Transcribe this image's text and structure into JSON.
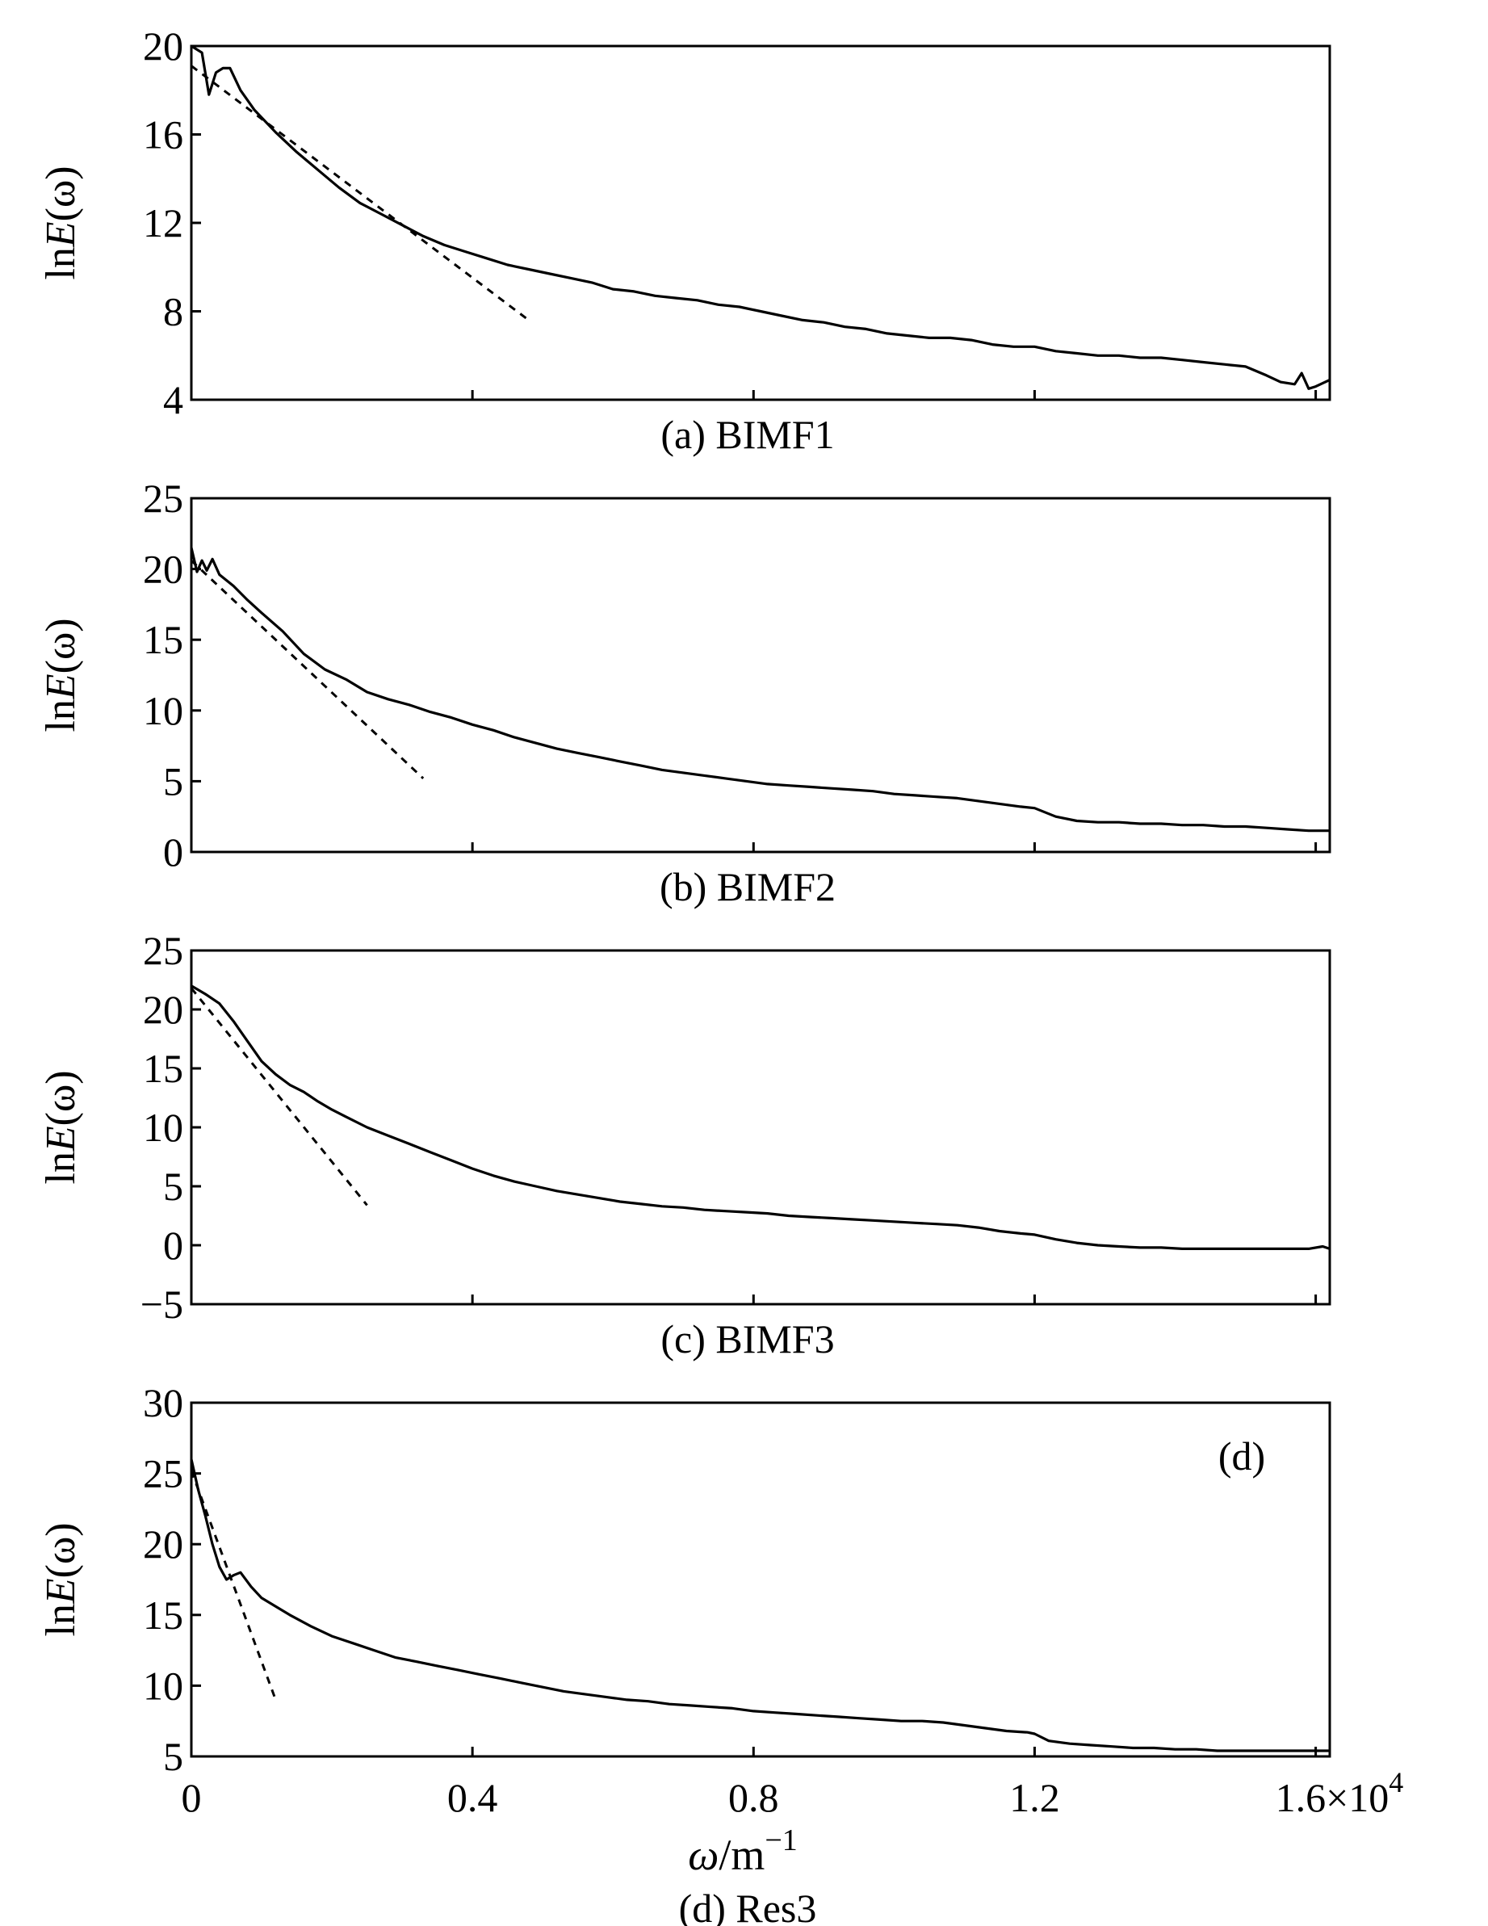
{
  "figure": {
    "x_axis": {
      "range": [
        0,
        16200
      ],
      "ticks": [
        0,
        4000,
        8000,
        12000,
        16000
      ],
      "tick_labels": [
        "0",
        "0.4",
        "0.8",
        "1.2",
        "1.6"
      ],
      "multiplier_prefix": "×10",
      "multiplier_exponent": "4",
      "label_symbol": "ω",
      "label_unit": "/m",
      "label_unit_exponent": "−1"
    }
  },
  "chart_data": [
    {
      "type": "line",
      "caption": "(a) BIMF1",
      "ylabel_prefix": "ln",
      "ylabel_var": "E",
      "ylabel_suffix": "(ω)",
      "xlim": [
        0,
        16200
      ],
      "ylim": [
        4,
        20
      ],
      "yticks": [
        4,
        8,
        12,
        16,
        20
      ],
      "ytick_labels": [
        "4",
        "8",
        "12",
        "16",
        "20"
      ],
      "series": [
        {
          "name": "spectrum",
          "style": "solid",
          "x": [
            0,
            150,
            250,
            350,
            450,
            550,
            700,
            900,
            1200,
            1500,
            1800,
            2100,
            2400,
            2700,
            3000,
            3300,
            3600,
            3900,
            4200,
            4500,
            4800,
            5100,
            5400,
            5700,
            6000,
            6300,
            6600,
            6900,
            7200,
            7500,
            7800,
            8100,
            8400,
            8700,
            9000,
            9300,
            9600,
            9900,
            10200,
            10500,
            10800,
            11100,
            11400,
            11700,
            12000,
            12300,
            12600,
            12900,
            13200,
            13500,
            13800,
            14100,
            14400,
            14700,
            15000,
            15300,
            15500,
            15700,
            15800,
            15900,
            16000,
            16200
          ],
          "y": [
            20,
            19.7,
            17.8,
            18.8,
            19,
            19,
            18,
            17.1,
            16.1,
            15.2,
            14.4,
            13.6,
            12.9,
            12.4,
            11.9,
            11.4,
            11.0,
            10.7,
            10.4,
            10.1,
            9.9,
            9.7,
            9.5,
            9.3,
            9.0,
            8.9,
            8.7,
            8.6,
            8.5,
            8.3,
            8.2,
            8.0,
            7.8,
            7.6,
            7.5,
            7.3,
            7.2,
            7.0,
            6.9,
            6.8,
            6.8,
            6.7,
            6.5,
            6.4,
            6.4,
            6.2,
            6.1,
            6.0,
            6.0,
            5.9,
            5.9,
            5.8,
            5.7,
            5.6,
            5.5,
            5.1,
            4.8,
            4.7,
            5.2,
            4.5,
            4.6,
            4.9
          ]
        },
        {
          "name": "linear-fit",
          "style": "dashed",
          "x": [
            0,
            4800
          ],
          "y": [
            19.1,
            7.6
          ]
        }
      ]
    },
    {
      "type": "line",
      "caption": "(b) BIMF2",
      "ylabel_prefix": "ln",
      "ylabel_var": "E",
      "ylabel_suffix": "(ω)",
      "xlim": [
        0,
        16200
      ],
      "ylim": [
        0,
        25
      ],
      "yticks": [
        0,
        5,
        10,
        15,
        20,
        25
      ],
      "ytick_labels": [
        "0",
        "5",
        "10",
        "15",
        "20",
        "25"
      ],
      "series": [
        {
          "name": "spectrum",
          "style": "solid",
          "x": [
            0,
            80,
            150,
            220,
            300,
            400,
            600,
            800,
            1000,
            1300,
            1600,
            1900,
            2200,
            2500,
            2800,
            3100,
            3400,
            3700,
            4000,
            4300,
            4600,
            4900,
            5200,
            5500,
            5800,
            6100,
            6400,
            6700,
            7000,
            7300,
            7600,
            7900,
            8200,
            8500,
            8800,
            9100,
            9400,
            9700,
            10000,
            10300,
            10600,
            10900,
            11200,
            11500,
            11800,
            12000,
            12300,
            12600,
            12900,
            13200,
            13500,
            13800,
            14100,
            14400,
            14700,
            15000,
            15300,
            15600,
            15900,
            16200
          ],
          "y": [
            21.5,
            19.8,
            20.6,
            19.9,
            20.7,
            19.6,
            18.8,
            17.8,
            16.9,
            15.6,
            14.0,
            12.9,
            12.2,
            11.3,
            10.8,
            10.4,
            9.9,
            9.5,
            9.0,
            8.6,
            8.1,
            7.7,
            7.3,
            7.0,
            6.7,
            6.4,
            6.1,
            5.8,
            5.6,
            5.4,
            5.2,
            5.0,
            4.8,
            4.7,
            4.6,
            4.5,
            4.4,
            4.3,
            4.1,
            4.0,
            3.9,
            3.8,
            3.6,
            3.4,
            3.2,
            3.1,
            2.5,
            2.2,
            2.1,
            2.1,
            2.0,
            2.0,
            1.9,
            1.9,
            1.8,
            1.8,
            1.7,
            1.6,
            1.5,
            1.5
          ]
        },
        {
          "name": "linear-fit",
          "style": "dashed",
          "x": [
            0,
            3300
          ],
          "y": [
            20.6,
            5.2
          ]
        }
      ]
    },
    {
      "type": "line",
      "caption": "(c) BIMF3",
      "ylabel_prefix": "ln",
      "ylabel_var": "E",
      "ylabel_suffix": "(ω)",
      "xlim": [
        0,
        16200
      ],
      "ylim": [
        -5,
        25
      ],
      "yticks": [
        -5,
        0,
        5,
        10,
        15,
        20,
        25
      ],
      "ytick_labels": [
        "−5",
        "0",
        "5",
        "10",
        "15",
        "20",
        "25"
      ],
      "series": [
        {
          "name": "spectrum",
          "style": "solid",
          "x": [
            0,
            200,
            400,
            600,
            800,
            1000,
            1200,
            1400,
            1600,
            1800,
            2000,
            2200,
            2500,
            2800,
            3100,
            3400,
            3700,
            4000,
            4300,
            4600,
            4900,
            5200,
            5500,
            5800,
            6100,
            6400,
            6700,
            7000,
            7300,
            7600,
            7900,
            8200,
            8500,
            8800,
            9100,
            9400,
            9700,
            10000,
            10300,
            10600,
            10900,
            11200,
            11500,
            11800,
            12000,
            12300,
            12600,
            12900,
            13200,
            13500,
            13800,
            14100,
            14400,
            14700,
            15000,
            15300,
            15600,
            15900,
            16100,
            16200
          ],
          "y": [
            22,
            21.3,
            20.5,
            19.0,
            17.3,
            15.6,
            14.5,
            13.6,
            13.0,
            12.2,
            11.5,
            10.9,
            10.0,
            9.3,
            8.6,
            7.9,
            7.2,
            6.5,
            5.9,
            5.4,
            5.0,
            4.6,
            4.3,
            4.0,
            3.7,
            3.5,
            3.3,
            3.2,
            3.0,
            2.9,
            2.8,
            2.7,
            2.5,
            2.4,
            2.3,
            2.2,
            2.1,
            2.0,
            1.9,
            1.8,
            1.7,
            1.5,
            1.2,
            1.0,
            0.9,
            0.5,
            0.2,
            0.0,
            -0.1,
            -0.2,
            -0.2,
            -0.3,
            -0.3,
            -0.3,
            -0.3,
            -0.3,
            -0.3,
            -0.3,
            -0.1,
            -0.3
          ]
        },
        {
          "name": "linear-fit",
          "style": "dashed",
          "x": [
            0,
            2500
          ],
          "y": [
            21.8,
            3.4
          ]
        }
      ]
    },
    {
      "type": "line",
      "caption": "(d) Res3",
      "annotation": "(d)",
      "ylabel_prefix": "ln",
      "ylabel_var": "E",
      "ylabel_suffix": "(ω)",
      "xlim": [
        0,
        16200
      ],
      "ylim": [
        5,
        30
      ],
      "yticks": [
        5,
        10,
        15,
        20,
        25,
        30
      ],
      "ytick_labels": [
        "5",
        "10",
        "15",
        "20",
        "25",
        "30"
      ],
      "series": [
        {
          "name": "spectrum",
          "style": "solid",
          "x": [
            0,
            100,
            200,
            300,
            400,
            500,
            600,
            700,
            850,
            1000,
            1200,
            1400,
            1700,
            2000,
            2300,
            2600,
            2900,
            3200,
            3500,
            3800,
            4100,
            4400,
            4700,
            5000,
            5300,
            5600,
            5900,
            6200,
            6500,
            6800,
            7100,
            7400,
            7700,
            8000,
            8300,
            8600,
            8900,
            9200,
            9500,
            9800,
            10100,
            10400,
            10700,
            11000,
            11300,
            11600,
            11900,
            12000,
            12200,
            12500,
            12800,
            13100,
            13400,
            13700,
            14000,
            14300,
            14600,
            14900,
            15200,
            15500,
            15800,
            16200
          ],
          "y": [
            26,
            23.8,
            22.0,
            20.0,
            18.4,
            17.5,
            17.8,
            18.0,
            17.0,
            16.2,
            15.6,
            15.0,
            14.2,
            13.5,
            13.0,
            12.5,
            12.0,
            11.7,
            11.4,
            11.1,
            10.8,
            10.5,
            10.2,
            9.9,
            9.6,
            9.4,
            9.2,
            9.0,
            8.9,
            8.7,
            8.6,
            8.5,
            8.4,
            8.2,
            8.1,
            8.0,
            7.9,
            7.8,
            7.7,
            7.6,
            7.5,
            7.5,
            7.4,
            7.2,
            7.0,
            6.8,
            6.7,
            6.6,
            6.1,
            5.9,
            5.8,
            5.7,
            5.6,
            5.6,
            5.5,
            5.5,
            5.4,
            5.4,
            5.4,
            5.4,
            5.4,
            5.4
          ]
        },
        {
          "name": "linear-fit",
          "style": "dashed",
          "x": [
            0,
            1200
          ],
          "y": [
            25.2,
            9.0
          ]
        }
      ]
    }
  ]
}
